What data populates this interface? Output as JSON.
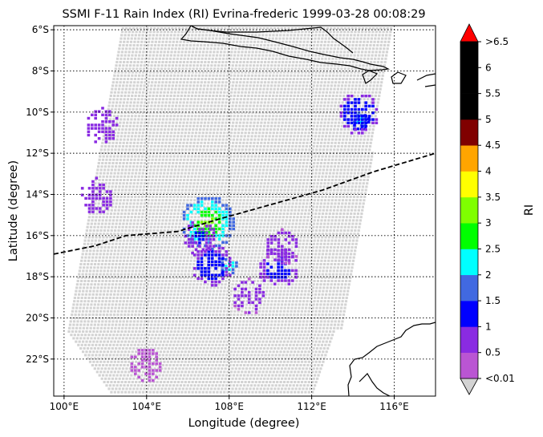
{
  "title": "SSMI F-11 Rain Index (RI) Evrina-frederic 1999-03-28 00:08:29",
  "xlabel": "Longitude (degree)",
  "ylabel": "Latitude (degree)",
  "colorbar_label": "RI",
  "chart_data": {
    "type": "heatmap",
    "lon_range": [
      99.5,
      118.0
    ],
    "lat_range": [
      -23.8,
      -5.8
    ],
    "grid": true,
    "x_ticks": [
      {
        "value": 100,
        "label": "100°E"
      },
      {
        "value": 104,
        "label": "104°E"
      },
      {
        "value": 108,
        "label": "108°E"
      },
      {
        "value": 112,
        "label": "112°E"
      },
      {
        "value": 116,
        "label": "116°E"
      }
    ],
    "y_ticks": [
      {
        "value": -6,
        "label": "6°S"
      },
      {
        "value": -8,
        "label": "8°S"
      },
      {
        "value": -10,
        "label": "10°S"
      },
      {
        "value": -12,
        "label": "12°S"
      },
      {
        "value": -14,
        "label": "14°S"
      },
      {
        "value": -16,
        "label": "16°S"
      },
      {
        "value": -18,
        "label": "18°S"
      },
      {
        "value": -20,
        "label": "20°S"
      },
      {
        "value": -22,
        "label": "22°S"
      }
    ],
    "colorbar": {
      "labels": [
        "<0.01",
        "0.5",
        "1",
        "1.5",
        "2",
        "2.5",
        "3",
        "3.5",
        "4",
        "4.5",
        "5",
        "5.5",
        "6",
        ">6.5"
      ],
      "under_color": "#d3d3d3",
      "over_color": "#ff0000",
      "colors": [
        "#ba55d3",
        "#8a2be2",
        "#0000ff",
        "#4169e1",
        "#00ffff",
        "#00ff00",
        "#7fff00",
        "#ffff00",
        "#ffa500",
        "#800000",
        "#000000",
        "#000000",
        "#000000"
      ]
    },
    "swath_colors": {
      "background": "#d3d3d3"
    },
    "rain_regions": [
      {
        "lon": 106.9,
        "lat": -15.3,
        "value": 3.2
      },
      {
        "lon": 107.9,
        "lat": -17.4,
        "value": 2.7
      },
      {
        "lon": 114.3,
        "lat": -10.4,
        "value": 2.2
      },
      {
        "lon": 114.2,
        "lat": -10.0,
        "value": 1.4
      },
      {
        "lon": 107.1,
        "lat": -17.4,
        "value": 1.3
      },
      {
        "lon": 110.3,
        "lat": -17.5,
        "value": 1.2
      },
      {
        "lon": 106.5,
        "lat": -16.0,
        "value": 1.0
      },
      {
        "lon": 101.5,
        "lat": -14.0,
        "value": 0.8
      },
      {
        "lon": 101.8,
        "lat": -10.6,
        "value": 0.7
      },
      {
        "lon": 108.9,
        "lat": -18.9,
        "value": 0.6
      },
      {
        "lon": 110.5,
        "lat": -16.5,
        "value": 0.6
      },
      {
        "lon": 103.9,
        "lat": -22.2,
        "value": 0.3
      }
    ],
    "track": {
      "line_style": "dashed",
      "points": [
        {
          "lon": 99.5,
          "lat": -16.9
        },
        {
          "lon": 101.5,
          "lat": -16.5
        },
        {
          "lon": 103.0,
          "lat": -16.0
        },
        {
          "lon": 105.5,
          "lat": -15.8
        },
        {
          "lon": 107.5,
          "lat": -15.2
        },
        {
          "lon": 110.0,
          "lat": -14.5
        },
        {
          "lon": 112.5,
          "lat": -13.8
        },
        {
          "lon": 115.0,
          "lat": -12.9
        },
        {
          "lon": 118.0,
          "lat": -12.0
        }
      ]
    }
  }
}
